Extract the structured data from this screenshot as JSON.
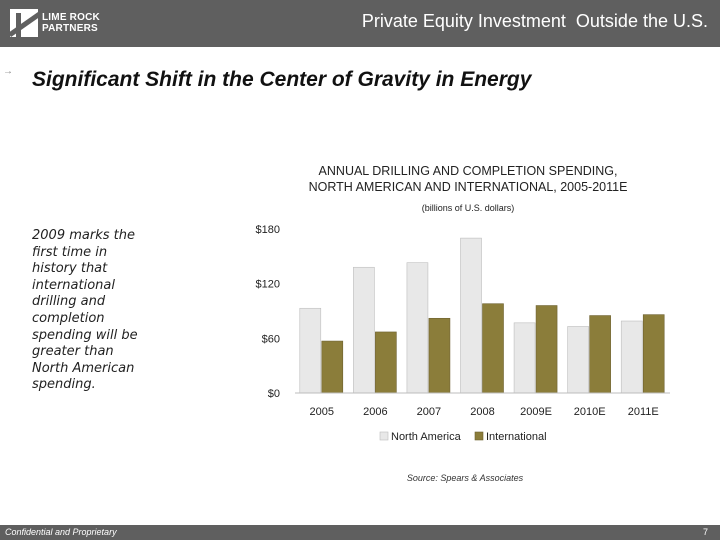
{
  "header": {
    "logo_line1": "LIME ROCK",
    "logo_line2": "PARTNERS",
    "title": "Private Equity Investment  Outside the U.S."
  },
  "slide": {
    "title": "Significant Shift in the Center of Gravity in Energy",
    "side_text": "2009 marks the first time in history that international drilling and completion spending will be greater than North American spending."
  },
  "chart_data": {
    "type": "bar",
    "title_line1": "ANNUAL DRILLING AND COMPLETION SPENDING,",
    "title_line2": "NORTH AMERICAN AND INTERNATIONAL, 2005-2011E",
    "subtitle": "(billions of U.S. dollars)",
    "categories": [
      "2005",
      "2006",
      "2007",
      "2008",
      "2009E",
      "2010E",
      "2011E"
    ],
    "series": [
      {
        "name": "North America",
        "values": [
          93,
          138,
          143,
          170,
          77,
          73,
          79
        ],
        "color": "#e8e8e8"
      },
      {
        "name": "International",
        "values": [
          57,
          67,
          82,
          98,
          96,
          85,
          86
        ],
        "color": "#8b7d3a"
      }
    ],
    "yticks": [
      "$180",
      "$120",
      "$60",
      "$0"
    ],
    "ytick_values": [
      180,
      120,
      60,
      0
    ],
    "ylim": [
      0,
      180
    ],
    "grid": false,
    "legend_position": "bottom"
  },
  "source": "Source: Spears & Associates",
  "footer": {
    "confidential": "Confidential and Proprietary",
    "page": "7"
  }
}
